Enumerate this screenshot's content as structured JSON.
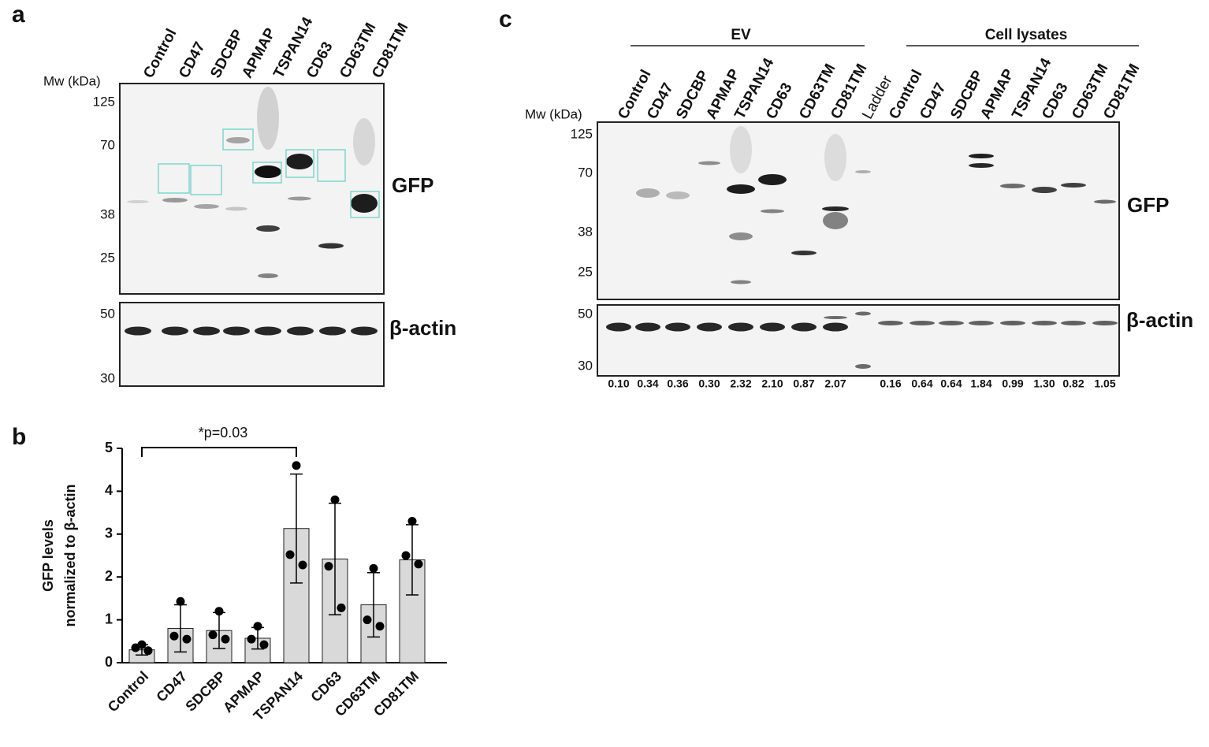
{
  "panels": {
    "a": {
      "letter": "a",
      "mw_label": "Mw (kDa)",
      "lanes": [
        "Control",
        "CD47",
        "SDCBP",
        "APMAP",
        "TSPAN14",
        "CD63",
        "CD63TM",
        "CD81TM"
      ],
      "gfp_mw": [
        "125",
        "70",
        "38",
        "25"
      ],
      "actin_mw": [
        "50",
        "30"
      ],
      "gfp_label": "GFP",
      "actin_label": "β-actin"
    },
    "c": {
      "letter": "c",
      "mw_label": "Mw (kDa)",
      "groups": [
        "EV",
        "Cell lysates"
      ],
      "lanes": [
        "Control",
        "CD47",
        "SDCBP",
        "APMAP",
        "TSPAN14",
        "CD63",
        "CD63TM",
        "CD81TM",
        "Ladder",
        "Control",
        "CD47",
        "SDCBP",
        "APMAP",
        "TSPAN14",
        "CD63",
        "CD63TM",
        "CD81TM"
      ],
      "gfp_mw": [
        "125",
        "70",
        "38",
        "25"
      ],
      "actin_mw": [
        "50",
        "30"
      ],
      "gfp_label": "GFP",
      "actin_label": "β-actin",
      "ratios": [
        "0.10",
        "0.34",
        "0.36",
        "0.30",
        "2.32",
        "2.10",
        "0.87",
        "2.07",
        "0.16",
        "0.64",
        "0.64",
        "1.84",
        "0.99",
        "1.30",
        "0.82",
        "1.05"
      ]
    }
  },
  "chart_data": {
    "type": "bar",
    "panel_letter": "b",
    "y_label": [
      "GFP levels",
      "normalized to β-actin"
    ],
    "annotation": "*p=0.03",
    "categories": [
      "Control",
      "CD47",
      "SDCBP",
      "APMAP",
      "TSPAN14",
      "CD63",
      "CD63TM",
      "CD81TM"
    ],
    "values": [
      0.3,
      0.8,
      0.75,
      0.57,
      3.13,
      2.42,
      1.35,
      2.4
    ],
    "errors": [
      0.12,
      0.55,
      0.42,
      0.25,
      1.27,
      1.3,
      0.75,
      0.82
    ],
    "points": [
      [
        0.42,
        0.35,
        0.28
      ],
      [
        1.43,
        0.62,
        0.55
      ],
      [
        1.2,
        0.65,
        0.55
      ],
      [
        0.85,
        0.55,
        0.42
      ],
      [
        4.6,
        2.52,
        2.28
      ],
      [
        3.8,
        2.25,
        1.28
      ],
      [
        2.2,
        1.0,
        0.85
      ],
      [
        3.3,
        2.5,
        2.3
      ]
    ],
    "color": "#d9d9d9",
    "ylim": [
      0,
      5
    ],
    "yticks": [
      0,
      1,
      2,
      3,
      4,
      5
    ]
  }
}
